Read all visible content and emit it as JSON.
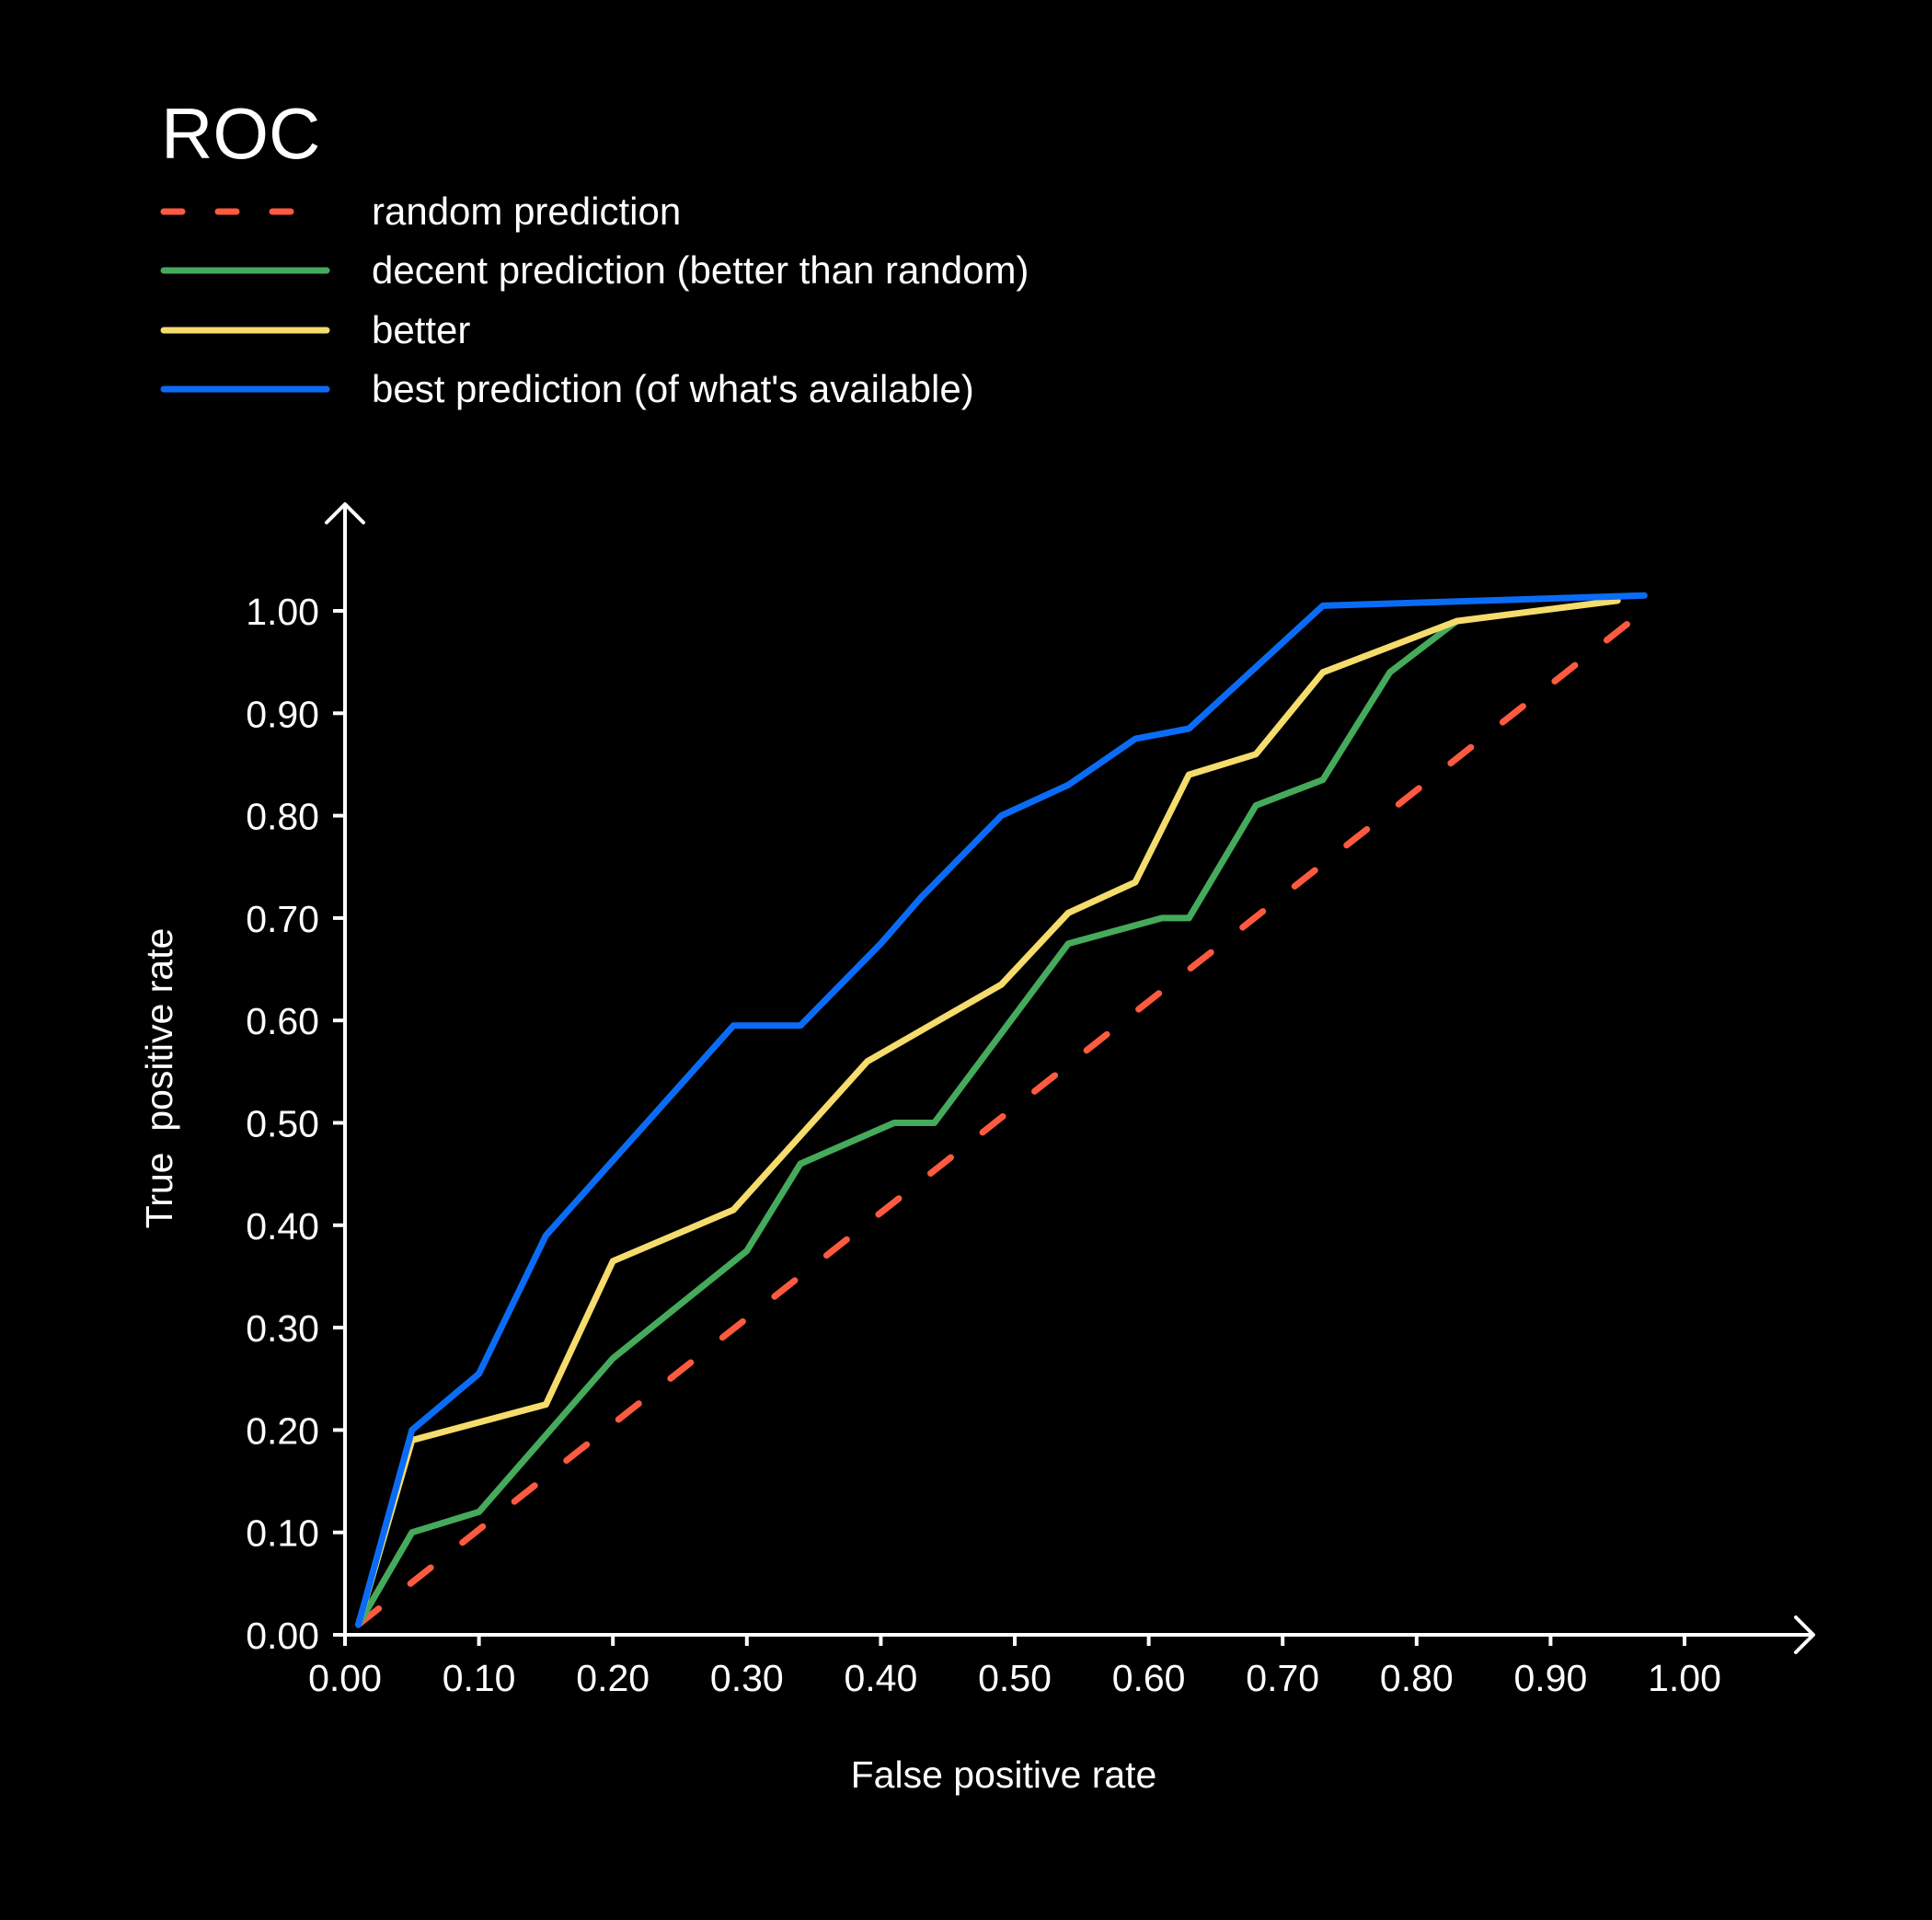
{
  "chart_data": {
    "type": "line",
    "title": "ROC",
    "xlabel": "False positive rate",
    "ylabel": "True  positive rate",
    "xlim": [
      0,
      1.0
    ],
    "ylim": [
      0,
      1.0
    ],
    "grid": false,
    "legend_position": "top-left",
    "x_ticks": [
      "0.00",
      "0.10",
      "0.20",
      "0.30",
      "0.40",
      "0.50",
      "0.60",
      "0.70",
      "0.80",
      "0.90",
      "1.00"
    ],
    "y_ticks": [
      "0.00",
      "0.10",
      "0.20",
      "0.30",
      "0.40",
      "0.50",
      "0.60",
      "0.70",
      "0.80",
      "0.90",
      "1.00"
    ],
    "series": [
      {
        "name": "random prediction",
        "color": "#FF5A40",
        "style": "dashed",
        "points": [
          [
            0.01,
            0.01
          ],
          [
            0.96,
            0.99
          ]
        ]
      },
      {
        "name": "decent prediction (better than random)",
        "color": "#45AA5C",
        "style": "solid",
        "points": [
          [
            0.01,
            0.01
          ],
          [
            0.05,
            0.1
          ],
          [
            0.1,
            0.12
          ],
          [
            0.2,
            0.27
          ],
          [
            0.3,
            0.375
          ],
          [
            0.34,
            0.46
          ],
          [
            0.41,
            0.5
          ],
          [
            0.44,
            0.5
          ],
          [
            0.54,
            0.675
          ],
          [
            0.61,
            0.7
          ],
          [
            0.63,
            0.7
          ],
          [
            0.68,
            0.81
          ],
          [
            0.73,
            0.835
          ],
          [
            0.78,
            0.94
          ],
          [
            0.83,
            0.99
          ]
        ]
      },
      {
        "name": "better",
        "color": "#F5DC6C",
        "style": "solid",
        "points": [
          [
            0.01,
            0.01
          ],
          [
            0.05,
            0.19
          ],
          [
            0.15,
            0.225
          ],
          [
            0.2,
            0.365
          ],
          [
            0.29,
            0.415
          ],
          [
            0.39,
            0.56
          ],
          [
            0.49,
            0.635
          ],
          [
            0.54,
            0.705
          ],
          [
            0.59,
            0.735
          ],
          [
            0.63,
            0.84
          ],
          [
            0.68,
            0.86
          ],
          [
            0.73,
            0.94
          ],
          [
            0.83,
            0.99
          ],
          [
            0.95,
            1.01
          ]
        ]
      },
      {
        "name": "best prediction (of what's available)",
        "color": "#0A6CF6",
        "style": "solid",
        "points": [
          [
            0.01,
            0.01
          ],
          [
            0.05,
            0.2
          ],
          [
            0.1,
            0.255
          ],
          [
            0.15,
            0.39
          ],
          [
            0.29,
            0.595
          ],
          [
            0.34,
            0.595
          ],
          [
            0.4,
            0.675
          ],
          [
            0.43,
            0.72
          ],
          [
            0.49,
            0.8
          ],
          [
            0.54,
            0.83
          ],
          [
            0.59,
            0.875
          ],
          [
            0.63,
            0.885
          ],
          [
            0.73,
            1.005
          ],
          [
            0.97,
            1.015
          ]
        ]
      }
    ]
  },
  "colors": {
    "background": "#000000",
    "axis": "#FFFFFF",
    "text": "#FFFFFF"
  }
}
